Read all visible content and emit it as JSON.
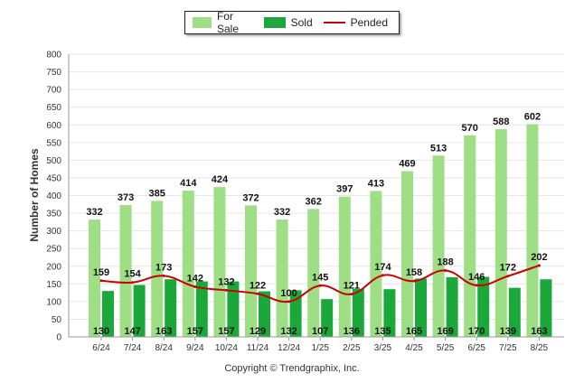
{
  "legend": {
    "for_sale_label": "For Sale",
    "sold_label": "Sold",
    "pended_label": "Pended"
  },
  "copyright": "Copyright © Trendgraphix, Inc.",
  "colors": {
    "for_sale": "#9ede85",
    "sold": "#1ba83a",
    "pended": "#cc0000",
    "grid": "#e6e6e6"
  },
  "chart_data": {
    "type": "bar",
    "title": "",
    "xlabel": "",
    "ylabel": "Number of Homes",
    "ylim": [
      0,
      800
    ],
    "yticks": [
      0,
      50,
      100,
      150,
      200,
      250,
      300,
      350,
      400,
      450,
      500,
      550,
      600,
      650,
      700,
      750,
      800
    ],
    "grid": true,
    "legend_position": "top-center",
    "categories": [
      "6/24",
      "7/24",
      "8/24",
      "9/24",
      "10/24",
      "11/24",
      "12/24",
      "1/25",
      "2/25",
      "3/25",
      "4/25",
      "5/25",
      "6/25",
      "7/25",
      "8/25"
    ],
    "series": [
      {
        "name": "For Sale",
        "type": "bar",
        "values": [
          332,
          373,
          385,
          414,
          424,
          372,
          332,
          362,
          397,
          413,
          469,
          513,
          570,
          588,
          602
        ]
      },
      {
        "name": "Sold",
        "type": "bar",
        "values": [
          130,
          147,
          163,
          157,
          157,
          129,
          132,
          107,
          136,
          135,
          165,
          169,
          170,
          139,
          163
        ]
      },
      {
        "name": "Pended",
        "type": "line",
        "values": [
          159,
          154,
          173,
          142,
          132,
          122,
          100,
          145,
          121,
          174,
          158,
          188,
          146,
          172,
          202
        ]
      }
    ]
  }
}
